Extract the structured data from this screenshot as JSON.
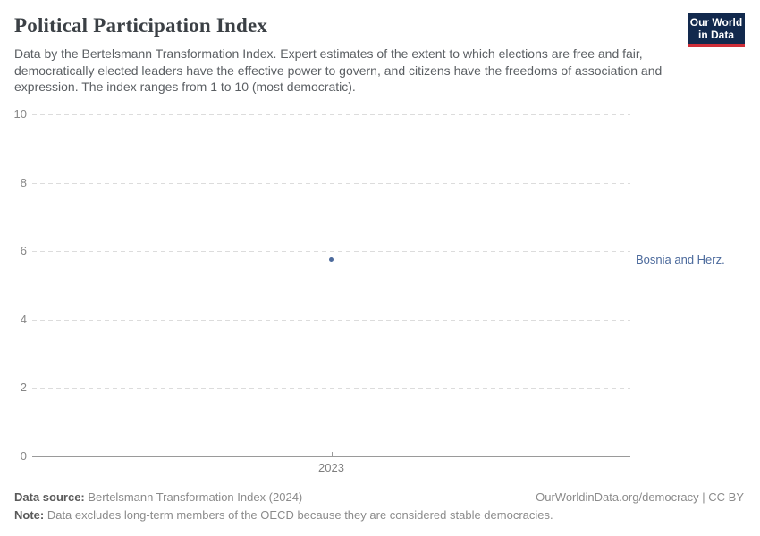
{
  "header": {
    "title": "Political Participation Index",
    "subtitle": "Data by the Bertelsmann Transformation Index. Expert estimates of the extent to which elections are free and fair, democratically elected leaders have the effective power to govern, and citizens have the freedoms of association and expression. The index ranges from 1 to 10 (most democratic).",
    "logo": {
      "line1": "Our World",
      "line2": "in Data",
      "bg_color": "#12294d",
      "stripe_color": "#cf2e38"
    }
  },
  "chart_data": {
    "type": "scatter",
    "title": "Political Participation Index",
    "x": [
      2023
    ],
    "xticklabels": [
      "2023"
    ],
    "series": [
      {
        "name": "Bosnia and Herz.",
        "values": [
          5.75
        ],
        "color": "#4c6a9c"
      }
    ],
    "ylim": [
      0,
      10
    ],
    "yticks": [
      0,
      2,
      4,
      6,
      8,
      10
    ],
    "xlabel": "",
    "ylabel": "",
    "grid": "horizontal-dashed",
    "legend": "entity-label-right"
  },
  "footer": {
    "datasource_label": "Data source:",
    "datasource_text": " Bertelsmann Transformation Index (2024)",
    "rights": "OurWorldinData.org/democracy | CC BY",
    "note_label": "Note:",
    "note_text": " Data excludes long-term members of the OECD because they are considered stable democracies."
  }
}
